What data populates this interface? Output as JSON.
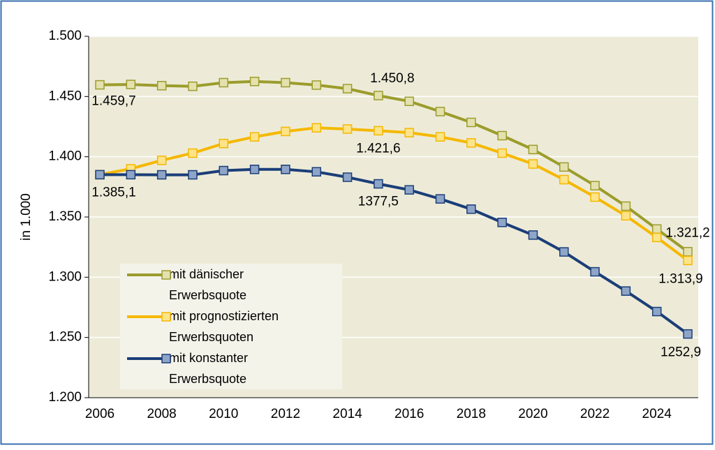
{
  "chart_data": {
    "type": "line",
    "y_label": "in 1.000",
    "categories": [
      "2006",
      null,
      "2008",
      null,
      "2010",
      null,
      "2012",
      null,
      "2014",
      null,
      "2016",
      null,
      "2018",
      null,
      "2020",
      null,
      "2022",
      null,
      "2024",
      null
    ],
    "ylim": [
      1200,
      1500
    ],
    "yticks": [
      {
        "value": 1200,
        "label": "1.200"
      },
      {
        "value": 1250,
        "label": "1.250"
      },
      {
        "value": 1300,
        "label": "1.300"
      },
      {
        "value": 1350,
        "label": "1.350"
      },
      {
        "value": 1400,
        "label": "1.400"
      },
      {
        "value": 1450,
        "label": "1.450"
      },
      {
        "value": 1500,
        "label": "1.500"
      }
    ],
    "grid": true,
    "series": [
      {
        "name": "mit dänischer Erwerbsquote",
        "color": "#9c9c2c",
        "marker_fill": "#e4e1ae",
        "values": [
          1459.7,
          1460,
          1459,
          1458.5,
          1461.5,
          1462.5,
          1461.5,
          1459.5,
          1456.5,
          1450.8,
          1446,
          1437.5,
          1428.5,
          1417.5,
          1406,
          1391.5,
          1376,
          1359,
          1340,
          1321.2
        ],
        "value_labels": [
          "1.459,7",
          null,
          null,
          null,
          null,
          null,
          null,
          null,
          null,
          "1.450,8",
          null,
          null,
          null,
          null,
          null,
          null,
          null,
          null,
          null,
          "1.321,2"
        ]
      },
      {
        "name": "mit prognostizierten Erwerbsquoten",
        "color": "#f5b800",
        "marker_fill": "#fde48a",
        "values": [
          1385.1,
          1390,
          1397,
          1403,
          1411,
          1416.5,
          1421,
          1424,
          1423,
          1421.6,
          1420,
          1416.5,
          1411.5,
          1403,
          1394,
          1381,
          1366.5,
          1351,
          1333,
          1313.9
        ],
        "value_labels": [
          null,
          null,
          null,
          null,
          null,
          null,
          null,
          null,
          null,
          "1.421,6",
          null,
          null,
          null,
          null,
          null,
          null,
          null,
          null,
          null,
          "1.313,9"
        ]
      },
      {
        "name": "mit konstanter Erwerbsquote",
        "color": "#1b3e78",
        "marker_fill": "#8ea5c8",
        "values": [
          1385.1,
          1385.1,
          1385,
          1385,
          1388.5,
          1389.5,
          1389.5,
          1387.5,
          1383,
          1377.5,
          1372.5,
          1365,
          1356.5,
          1345.5,
          1335,
          1321,
          1304.5,
          1288.5,
          1271.5,
          1252.9
        ],
        "value_labels": [
          "1.385,1",
          null,
          null,
          null,
          null,
          null,
          null,
          null,
          null,
          "1377,5",
          null,
          null,
          null,
          null,
          null,
          null,
          null,
          null,
          null,
          "1252,9"
        ]
      }
    ]
  }
}
